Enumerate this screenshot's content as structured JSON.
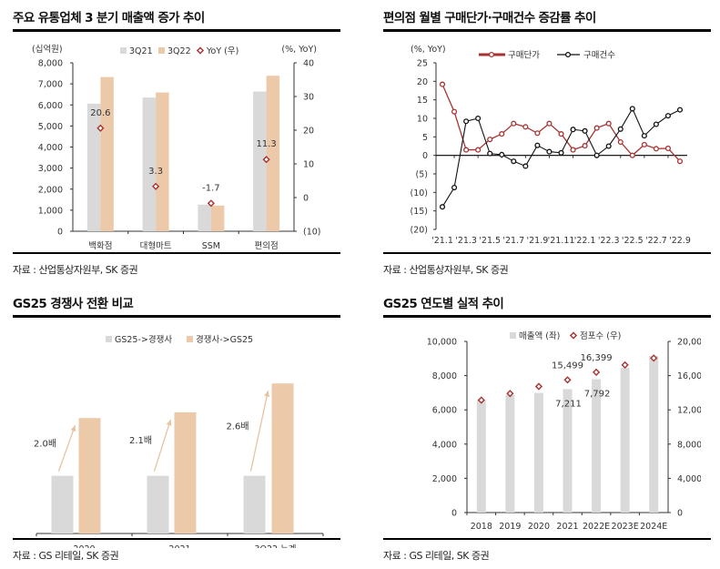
{
  "panels": {
    "p1": {
      "title": "주요 유통업체 3 분기 매출액 증가 추이",
      "source": "자료 : 산업통상자원부, SK 증권"
    },
    "p2": {
      "title": "편의점 월별 구매단가·구매건수 증감률 추이",
      "source": "자료 : 산업통상자원부, SK 증권"
    },
    "p3": {
      "title": "GS25 경쟁사 전환 비교",
      "source": "자료 : GS 리테일, SK 증권"
    },
    "p4": {
      "title": "GS25 연도별 실적 추이",
      "source": "자료 : GS 리테일, SK 증권"
    }
  },
  "colors": {
    "gray_bar": "#d9d9d9",
    "peach_bar": "#ecc9a8",
    "red": "#a83232",
    "black": "#111111",
    "arrow": "#e6c3a3"
  },
  "chart_data": [
    {
      "type": "bar",
      "title": "주요 유통업체 3 분기 매출액 증가 추이",
      "ylabel": "(십억원)",
      "y2label": "(%, YoY)",
      "categories": [
        "백화점",
        "대형마트",
        "SSM",
        "편의점"
      ],
      "series": [
        {
          "name": "3Q21",
          "axis": "left",
          "values": [
            6060,
            6350,
            1265,
            6635
          ]
        },
        {
          "name": "3Q22",
          "axis": "left",
          "values": [
            7325,
            6590,
            1222,
            7385
          ]
        },
        {
          "name": "YoY (우)",
          "axis": "right",
          "type": "scatter",
          "values": [
            20.6,
            3.3,
            -1.7,
            11.3
          ],
          "labels": [
            "20.6",
            "3.3",
            "-1.7",
            "11.3"
          ]
        }
      ],
      "ylim": [
        0,
        8000
      ],
      "yticks": [
        "0",
        "1,000",
        "2,000",
        "3,000",
        "4,000",
        "5,000",
        "6,000",
        "7,000",
        "8,000"
      ],
      "y2lim": [
        -10,
        40
      ],
      "y2ticks": [
        "(10)",
        "0",
        "10",
        "20",
        "30",
        "40"
      ],
      "legend": "top-center",
      "grid": false
    },
    {
      "type": "line",
      "title": "편의점 월별 구매단가·구매건수 증감률 추이",
      "ylabel": "(%, YoY)",
      "x": [
        "'21.1",
        "'21.2",
        "'21.3",
        "'21.4",
        "'21.5",
        "'21.6",
        "'21.7",
        "'21.8",
        "'21.9",
        "'21.10",
        "'21.11",
        "'21.12",
        "'22.1",
        "'22.2",
        "'22.3",
        "'22.4",
        "'22.5",
        "'22.6",
        "'22.7",
        "'22.8",
        "'22.9"
      ],
      "xtick_labels": [
        "'21.1",
        "'21.3",
        "'21.5",
        "'21.7",
        "'21.9",
        "'21.11",
        "'22.1",
        "'22.3",
        "'22.5",
        "'22.7",
        "'22.9"
      ],
      "series": [
        {
          "name": "구매단가",
          "values": [
            19.2,
            11.8,
            1.5,
            1.5,
            4.3,
            5.8,
            8.6,
            7.7,
            6.0,
            8.6,
            5.8,
            1.5,
            2.6,
            7.4,
            8.6,
            3.6,
            0.0,
            2.9,
            1.8,
            1.9,
            -1.6
          ]
        },
        {
          "name": "구매건수",
          "values": [
            -13.9,
            -8.7,
            9.2,
            10.0,
            0.5,
            0.2,
            -1.6,
            -2.9,
            2.7,
            1.0,
            0.7,
            7.0,
            6.6,
            0.0,
            2.5,
            7.1,
            12.6,
            5.3,
            8.4,
            10.7,
            12.3
          ]
        }
      ],
      "ylim": [
        -20,
        25
      ],
      "yticks": [
        "(20)",
        "(15)",
        "(10)",
        "(5)",
        "0",
        "5",
        "10",
        "15",
        "20",
        "25"
      ],
      "legend": "top-center",
      "grid": false
    },
    {
      "type": "bar",
      "title": "GS25 경쟁사 전환 비교",
      "categories": [
        "2020",
        "2021",
        "3Q22 누계"
      ],
      "series": [
        {
          "name": "GS25->경쟁사",
          "values": [
            1.0,
            1.0,
            1.0
          ]
        },
        {
          "name": "경쟁사->GS25",
          "values": [
            2.0,
            2.1,
            2.6
          ]
        }
      ],
      "annotations": [
        "2.0배",
        "2.1배",
        "2.6배"
      ],
      "ylim": [
        0,
        2.8
      ],
      "legend": "top-center",
      "grid": false
    },
    {
      "type": "bar",
      "title": "GS25 연도별 실적 추이",
      "categories": [
        "2018",
        "2019",
        "2020",
        "2021",
        "2022E",
        "2023E",
        "2024E"
      ],
      "series": [
        {
          "name": "매출액 (좌)",
          "axis": "left",
          "values": [
            6570,
            6870,
            6990,
            7211,
            7792,
            8450,
            9150
          ],
          "labels": [
            "",
            "",
            "",
            "7,211",
            "7,792",
            "",
            ""
          ]
        },
        {
          "name": "점포수 (우)",
          "axis": "right",
          "type": "scatter",
          "values": [
            13140,
            13910,
            14730,
            15499,
            16399,
            17250,
            18050
          ],
          "labels": [
            "",
            "",
            "",
            "15,499",
            "16,399",
            "",
            ""
          ]
        }
      ],
      "ylim": [
        0,
        10000
      ],
      "yticks": [
        "0",
        "2,000",
        "4,000",
        "6,000",
        "8,000",
        "10,000"
      ],
      "y2lim": [
        0,
        20000
      ],
      "y2ticks": [
        "0",
        "4,000",
        "8,000",
        "12,000",
        "16,000",
        "20,000"
      ],
      "legend": "top-center",
      "grid": false
    }
  ]
}
